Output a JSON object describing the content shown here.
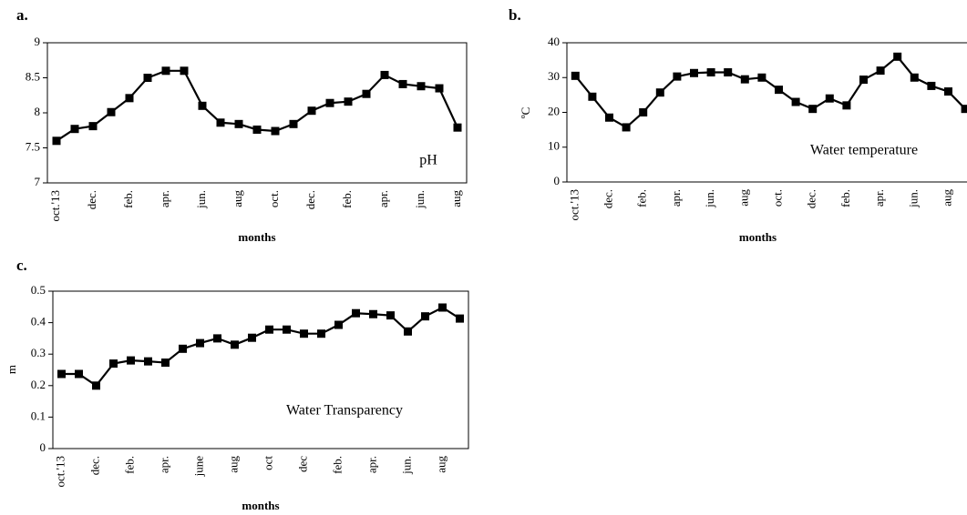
{
  "chart_data": [
    {
      "type": "line",
      "title": "a.",
      "annotation": "pH",
      "xlabel": "months",
      "color": "#000000",
      "categories": [
        "oct.'13",
        null,
        "dec.",
        null,
        "feb.",
        null,
        "apr.",
        null,
        "jun.",
        null,
        "aug",
        null,
        "oct.",
        null,
        "dec.",
        null,
        "feb.",
        null,
        "apr.",
        null,
        "jun.",
        null,
        "aug"
      ],
      "values": [
        7.6,
        7.77,
        7.81,
        8.01,
        8.21,
        8.5,
        8.6,
        8.6,
        8.1,
        7.86,
        7.84,
        7.76,
        7.74,
        7.84,
        8.03,
        8.14,
        8.16,
        8.27,
        8.54,
        8.41,
        8.38,
        8.35,
        7.79
      ],
      "ylim": [
        7,
        9
      ],
      "yticks": [
        7,
        7.5,
        8,
        8.5,
        9
      ]
    },
    {
      "type": "line",
      "title": "b.",
      "annotation": "Water temperature",
      "xlabel": "months",
      "ylabel": "ºC",
      "color": "#000000",
      "categories": [
        "oct.'13",
        null,
        "dec.",
        null,
        "feb.",
        null,
        "apr.",
        null,
        "jun.",
        null,
        "aug",
        null,
        "oct.",
        null,
        "dec.",
        null,
        "feb.",
        null,
        "apr.",
        null,
        "jun.",
        null,
        "aug",
        null
      ],
      "values": [
        30.5,
        24.5,
        18.5,
        15.7,
        20,
        25.7,
        30.3,
        31.3,
        31.5,
        31.5,
        29.5,
        30,
        26.5,
        23,
        21,
        24,
        22,
        29.4,
        32,
        36,
        30,
        27.6,
        26,
        21
      ],
      "ylim": [
        0,
        40
      ],
      "yticks": [
        0,
        10,
        20,
        30,
        40
      ]
    },
    {
      "type": "line",
      "title": "c.",
      "annotation": "Water Transparency",
      "xlabel": "months",
      "ylabel": "m",
      "color": "#000000",
      "categories": [
        "oct.'13",
        null,
        "dec.",
        null,
        "feb.",
        null,
        "apr.",
        null,
        "june",
        null,
        "aug",
        null,
        "oct",
        null,
        "dec",
        null,
        "feb.",
        null,
        "apr.",
        null,
        "jun.",
        null,
        "aug",
        null
      ],
      "values": [
        0.237,
        0.237,
        0.2,
        0.27,
        0.28,
        0.277,
        0.273,
        0.317,
        0.335,
        0.35,
        0.33,
        0.352,
        0.378,
        0.378,
        0.365,
        0.365,
        0.393,
        0.43,
        0.427,
        0.423,
        0.372,
        0.42,
        0.448,
        0.413
      ],
      "ylim": [
        0,
        0.5
      ],
      "yticks": [
        0,
        0.1,
        0.2,
        0.3,
        0.4,
        0.5
      ]
    }
  ]
}
